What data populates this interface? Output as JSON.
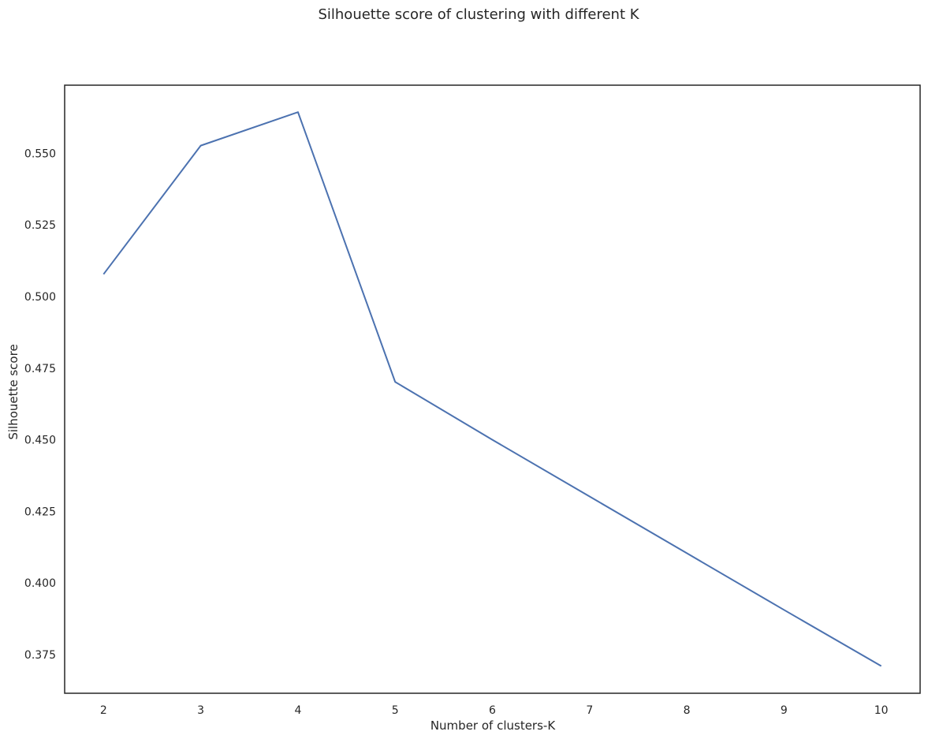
{
  "chart_data": {
    "type": "line",
    "title": "Silhouette score of clustering with different K",
    "xlabel": "Number of clusters-K",
    "ylabel": "Silhouette score",
    "x": [
      2,
      3,
      4,
      5,
      6,
      7,
      8,
      9,
      10
    ],
    "series": [
      {
        "values": [
          0.5078,
          0.5527,
          0.5644,
          0.4702,
          0.45,
          0.4302,
          0.4104,
          0.3906,
          0.371
        ],
        "color": "#4c72b0"
      }
    ],
    "xticks": [
      "2",
      "3",
      "4",
      "5",
      "6",
      "7",
      "8",
      "9",
      "10"
    ],
    "yticks": [
      "0.375",
      "0.400",
      "0.425",
      "0.450",
      "0.475",
      "0.500",
      "0.525",
      "0.550"
    ],
    "xlim": [
      1.6,
      10.4
    ],
    "ylim": [
      0.3615,
      0.5738
    ],
    "grid": false,
    "legend": "none"
  }
}
